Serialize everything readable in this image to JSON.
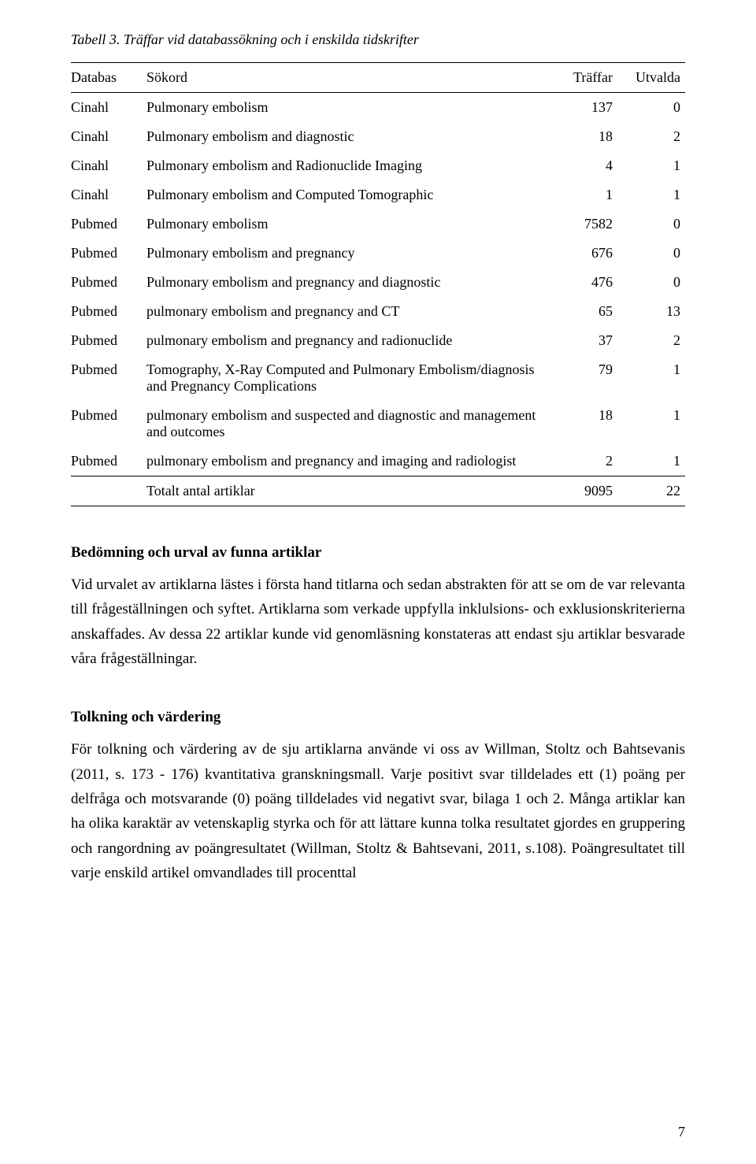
{
  "caption": "Tabell 3. Träffar vid databassökning och i enskilda tidskrifter",
  "columns": {
    "c0": "Databas",
    "c1": "Sökord",
    "c2": "Träffar",
    "c3": "Utvalda"
  },
  "rows": [
    {
      "db": "Cinahl",
      "q": "Pulmonary embolism",
      "hits": "137",
      "sel": "0"
    },
    {
      "db": "Cinahl",
      "q": "Pulmonary embolism and diagnostic",
      "hits": "18",
      "sel": "2"
    },
    {
      "db": "Cinahl",
      "q": "Pulmonary embolism and Radionuclide Imaging",
      "hits": "4",
      "sel": "1"
    },
    {
      "db": "Cinahl",
      "q": "Pulmonary embolism and Computed Tomographic",
      "hits": "1",
      "sel": "1"
    },
    {
      "db": "Pubmed",
      "q": "Pulmonary embolism",
      "hits": "7582",
      "sel": "0"
    },
    {
      "db": "Pubmed",
      "q": "Pulmonary embolism and pregnancy",
      "hits": "676",
      "sel": "0"
    },
    {
      "db": "Pubmed",
      "q": "Pulmonary embolism and pregnancy and diagnostic",
      "hits": "476",
      "sel": "0"
    },
    {
      "db": "Pubmed",
      "q": "pulmonary embolism and pregnancy and CT",
      "hits": "65",
      "sel": "13"
    },
    {
      "db": "Pubmed",
      "q": "pulmonary embolism and pregnancy and radionuclide",
      "hits": "37",
      "sel": "2"
    },
    {
      "db": "Pubmed",
      "q": "Tomography, X-Ray Computed and Pulmonary Embolism/diagnosis and Pregnancy Complications",
      "hits": "79",
      "sel": "1"
    },
    {
      "db": "Pubmed",
      "q": "pulmonary embolism and suspected and diagnostic and management and outcomes",
      "hits": "18",
      "sel": "1"
    },
    {
      "db": "Pubmed",
      "q": "pulmonary embolism and pregnancy and imaging and radiologist",
      "hits": "2",
      "sel": "1"
    }
  ],
  "totals": {
    "label_db": "",
    "label": "Totalt antal artiklar",
    "hits": "9095",
    "sel": "22"
  },
  "h_bedomning": "Bedömning och urval av funna artiklar",
  "p_bedomning": "Vid urvalet av artiklarna lästes i första hand titlarna och sedan abstrakten för att se om de var relevanta till frågeställningen och syftet. Artiklarna som verkade uppfylla inklulsions- och exklusionskriterierna anskaffades. Av dessa 22 artiklar kunde vid genomläsning konstateras att endast sju artiklar besvarade våra frågeställningar.",
  "h_tolkning": "Tolkning och värdering",
  "p_tolkning": "För tolkning och värdering av de sju artiklarna använde vi oss av Willman, Stoltz och Bahtsevanis (2011, s. 173 - 176) kvantitativa granskningsmall.  Varje positivt svar tilldelades ett (1) poäng per delfråga och motsvarande (0) poäng tilldelades vid negativt svar, bilaga 1 och 2. Många artiklar kan ha olika karaktär av vetenskaplig styrka och för att lättare kunna tolka resultatet gjordes en gruppering och rangordning av poängresultatet (Willman, Stoltz & Bahtsevani, 2011, s.108).  Poängresultatet till varje enskild artikel omvandlades till procenttal",
  "pagenum": "7"
}
